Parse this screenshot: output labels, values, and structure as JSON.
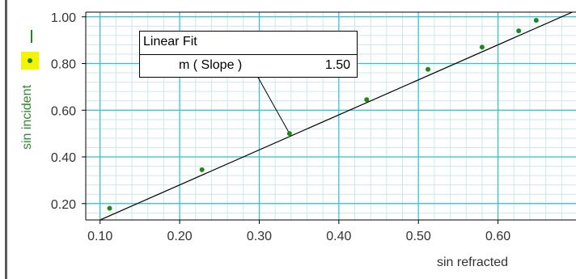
{
  "chart_data": {
    "type": "scatter",
    "xlabel": "sin refracted",
    "ylabel": "sin incident",
    "xlim": [
      0.082,
      0.698
    ],
    "ylim": [
      0.13,
      1.02
    ],
    "x_ticks": [
      "0.10",
      "0.20",
      "0.30",
      "0.40",
      "0.50",
      "0.60"
    ],
    "y_ticks": [
      "0.20",
      "0.40",
      "0.60",
      "0.80",
      "1.00"
    ],
    "grid": true,
    "series": [
      {
        "x": [
          0.112,
          0.228,
          0.338,
          0.435,
          0.512,
          0.58,
          0.626,
          0.648
        ],
        "y": [
          0.18,
          0.345,
          0.5,
          0.645,
          0.775,
          0.87,
          0.94,
          0.985
        ]
      }
    ],
    "fit": {
      "type": "linear",
      "slope": 1.5,
      "intercept": -0.02
    },
    "annotation": {
      "title": "Linear Fit",
      "param": "m ( Slope )",
      "value": "1.50",
      "anchor": [
        0.338,
        0.5
      ]
    },
    "colors": {
      "grid_major": "#29c4d6",
      "grid_minor": "#cfe6ea",
      "points": "#1a8a1a",
      "fit_line": "#000000",
      "ylabel": "#2e8b2e",
      "legend_bg": "#f4f400"
    }
  }
}
